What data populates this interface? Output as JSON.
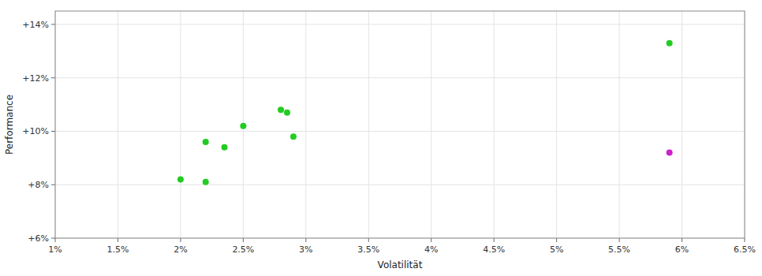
{
  "chart_data": {
    "type": "scatter",
    "xlabel": "Volatilität",
    "ylabel": "Performance",
    "xlim": [
      0.01,
      0.065
    ],
    "ylim": [
      0.06,
      0.145
    ],
    "xticks": [
      {
        "value": 0.01,
        "label": "1%"
      },
      {
        "value": 0.015,
        "label": "1.5%"
      },
      {
        "value": 0.02,
        "label": "2%"
      },
      {
        "value": 0.025,
        "label": "2.5%"
      },
      {
        "value": 0.03,
        "label": "3%"
      },
      {
        "value": 0.035,
        "label": "3.5%"
      },
      {
        "value": 0.04,
        "label": "4%"
      },
      {
        "value": 0.045,
        "label": "4.5%"
      },
      {
        "value": 0.05,
        "label": "5%"
      },
      {
        "value": 0.055,
        "label": "5.5%"
      },
      {
        "value": 0.06,
        "label": "6%"
      },
      {
        "value": 0.065,
        "label": "6.5%"
      }
    ],
    "yticks": [
      {
        "value": 0.06,
        "label": "+6%"
      },
      {
        "value": 0.08,
        "label": "+8%"
      },
      {
        "value": 0.1,
        "label": "+10%"
      },
      {
        "value": 0.12,
        "label": "+12%"
      },
      {
        "value": 0.14,
        "label": "+14%"
      }
    ],
    "grid": true,
    "series": [
      {
        "color": "#22cc22",
        "x": [
          0.02,
          0.022,
          0.022,
          0.0235,
          0.025,
          0.028,
          0.0285,
          0.029,
          0.059
        ],
        "values": [
          0.082,
          0.081,
          0.096,
          0.094,
          0.102,
          0.108,
          0.107,
          0.098,
          0.133
        ]
      },
      {
        "color": "#cc22cc",
        "x": [
          0.059
        ],
        "values": [
          0.092
        ]
      }
    ]
  }
}
